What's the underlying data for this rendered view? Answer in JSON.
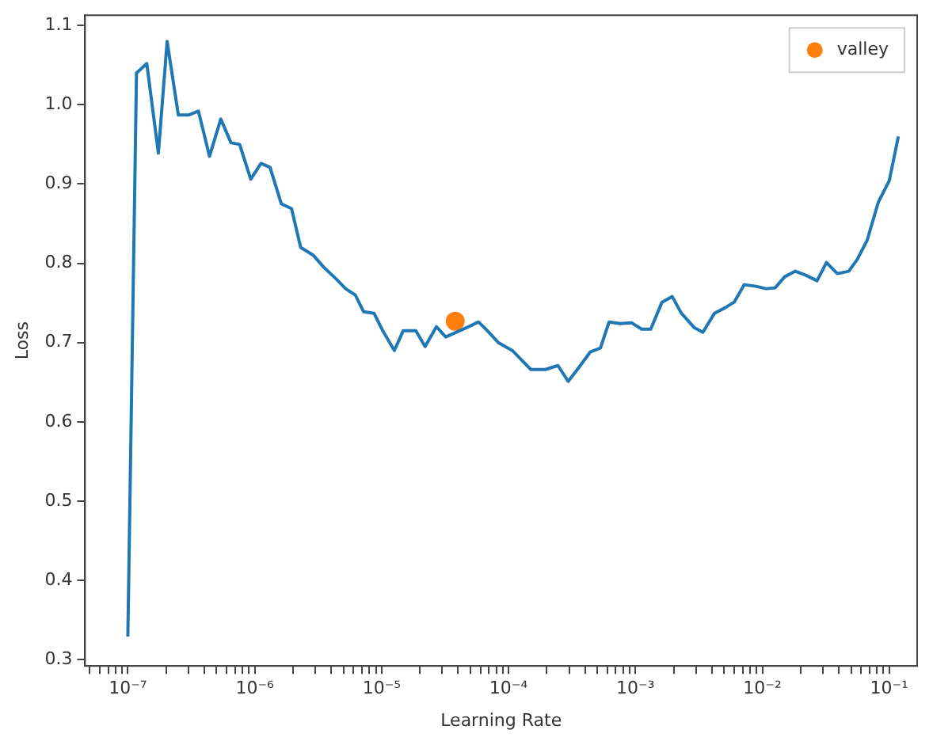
{
  "chart_data": {
    "type": "line",
    "xlabel": "Learning Rate",
    "ylabel": "Loss",
    "log": "x",
    "legend": "top right",
    "grid": false,
    "xlim": [
      4.6e-08,
      0.166
    ],
    "ylim": [
      0.292,
      1.113
    ],
    "xticks": [
      {
        "value": 5e-08,
        "label": null
      },
      {
        "value": 6e-08,
        "label": null
      },
      {
        "value": 7e-08,
        "label": null
      },
      {
        "value": 8e-08,
        "label": null
      },
      {
        "value": 9e-08,
        "label": null
      },
      {
        "value": 1e-07,
        "label": "10⁻⁷"
      },
      {
        "value": 2e-07,
        "label": null
      },
      {
        "value": 3e-07,
        "label": null
      },
      {
        "value": 4e-07,
        "label": null
      },
      {
        "value": 5e-07,
        "label": null
      },
      {
        "value": 6e-07,
        "label": null
      },
      {
        "value": 7e-07,
        "label": null
      },
      {
        "value": 8e-07,
        "label": null
      },
      {
        "value": 9e-07,
        "label": null
      },
      {
        "value": 1e-06,
        "label": "10⁻⁶"
      },
      {
        "value": 2e-06,
        "label": null
      },
      {
        "value": 3e-06,
        "label": null
      },
      {
        "value": 4e-06,
        "label": null
      },
      {
        "value": 5e-06,
        "label": null
      },
      {
        "value": 6e-06,
        "label": null
      },
      {
        "value": 7e-06,
        "label": null
      },
      {
        "value": 8e-06,
        "label": null
      },
      {
        "value": 9e-06,
        "label": null
      },
      {
        "value": 1e-05,
        "label": "10⁻⁵"
      },
      {
        "value": 2e-05,
        "label": null
      },
      {
        "value": 3e-05,
        "label": null
      },
      {
        "value": 4e-05,
        "label": null
      },
      {
        "value": 5e-05,
        "label": null
      },
      {
        "value": 6e-05,
        "label": null
      },
      {
        "value": 7e-05,
        "label": null
      },
      {
        "value": 8e-05,
        "label": null
      },
      {
        "value": 9e-05,
        "label": null
      },
      {
        "value": 0.0001,
        "label": "10⁻⁴"
      },
      {
        "value": 0.0002,
        "label": null
      },
      {
        "value": 0.0003,
        "label": null
      },
      {
        "value": 0.0004,
        "label": null
      },
      {
        "value": 0.0005,
        "label": null
      },
      {
        "value": 0.0006,
        "label": null
      },
      {
        "value": 0.0007,
        "label": null
      },
      {
        "value": 0.0008,
        "label": null
      },
      {
        "value": 0.0009,
        "label": null
      },
      {
        "value": 0.001,
        "label": "10⁻³"
      },
      {
        "value": 0.002,
        "label": null
      },
      {
        "value": 0.003,
        "label": null
      },
      {
        "value": 0.004,
        "label": null
      },
      {
        "value": 0.005,
        "label": null
      },
      {
        "value": 0.006,
        "label": null
      },
      {
        "value": 0.007,
        "label": null
      },
      {
        "value": 0.008,
        "label": null
      },
      {
        "value": 0.009,
        "label": null
      },
      {
        "value": 0.01,
        "label": "10⁻²"
      },
      {
        "value": 0.02,
        "label": null
      },
      {
        "value": 0.03,
        "label": null
      },
      {
        "value": 0.04,
        "label": null
      },
      {
        "value": 0.05,
        "label": null
      },
      {
        "value": 0.06,
        "label": null
      },
      {
        "value": 0.07,
        "label": null
      },
      {
        "value": 0.08,
        "label": null
      },
      {
        "value": 0.09,
        "label": null
      },
      {
        "value": 0.1,
        "label": "10⁻¹"
      }
    ],
    "yticks": [
      {
        "value": 0.3,
        "label": "0.3"
      },
      {
        "value": 0.4,
        "label": "0.4"
      },
      {
        "value": 0.5,
        "label": "0.5"
      },
      {
        "value": 0.6,
        "label": "0.6"
      },
      {
        "value": 0.7,
        "label": "0.7"
      },
      {
        "value": 0.8,
        "label": "0.8"
      },
      {
        "value": 0.9,
        "label": "0.9"
      },
      {
        "value": 1.0,
        "label": "1.0"
      },
      {
        "value": 1.1,
        "label": "1.1"
      }
    ],
    "series": [
      {
        "color": "#1f77b4",
        "marker": "none",
        "line_style": "solid",
        "x": [
          1e-07,
          1.17e-07,
          1.41e-07,
          1.74e-07,
          2.04e-07,
          2.5e-07,
          3e-07,
          3.6e-07,
          4.4e-07,
          5.4e-07,
          6.5e-07,
          7.6e-07,
          9.3e-07,
          1.12e-06,
          1.32e-06,
          1.62e-06,
          1.95e-06,
          2.3e-06,
          2.9e-06,
          3.5e-06,
          4.4e-06,
          5.2e-06,
          6.2e-06,
          7.2e-06,
          8.7e-06,
          1.02e-05,
          1.26e-05,
          1.48e-05,
          1.86e-05,
          2.2e-05,
          2.7e-05,
          3.2e-05,
          4.7e-05,
          5.8e-05,
          6.8e-05,
          8.3e-05,
          0.000107,
          0.000123,
          0.00015,
          0.000195,
          0.000245,
          0.000295,
          0.00036,
          0.00044,
          0.00053,
          0.00062,
          0.00076,
          0.00093,
          0.00112,
          0.00132,
          0.00162,
          0.00195,
          0.0023,
          0.0029,
          0.0034,
          0.0042,
          0.0051,
          0.006,
          0.0072,
          0.0089,
          0.0107,
          0.0126,
          0.015,
          0.0182,
          0.022,
          0.027,
          0.032,
          0.039,
          0.048,
          0.056,
          0.067,
          0.082,
          0.1,
          0.118
        ],
        "values": [
          0.329,
          1.04,
          1.052,
          0.939,
          1.08,
          0.987,
          0.987,
          0.992,
          0.935,
          0.982,
          0.952,
          0.95,
          0.906,
          0.926,
          0.921,
          0.875,
          0.869,
          0.82,
          0.81,
          0.795,
          0.78,
          0.768,
          0.76,
          0.739,
          0.737,
          0.715,
          0.69,
          0.715,
          0.715,
          0.695,
          0.72,
          0.707,
          0.719,
          0.726,
          0.715,
          0.7,
          0.69,
          0.68,
          0.666,
          0.666,
          0.671,
          0.651,
          0.669,
          0.688,
          0.693,
          0.726,
          0.724,
          0.725,
          0.717,
          0.717,
          0.751,
          0.758,
          0.737,
          0.719,
          0.713,
          0.737,
          0.744,
          0.751,
          0.773,
          0.771,
          0.768,
          0.769,
          0.783,
          0.79,
          0.785,
          0.778,
          0.801,
          0.787,
          0.79,
          0.805,
          0.829,
          0.877,
          0.904,
          0.96
        ]
      },
      {
        "type": "scatter",
        "name": "valley",
        "color": "#ff7f0e",
        "marker": "circle",
        "x": [
          3.8e-05
        ],
        "values": [
          0.727
        ]
      }
    ]
  }
}
